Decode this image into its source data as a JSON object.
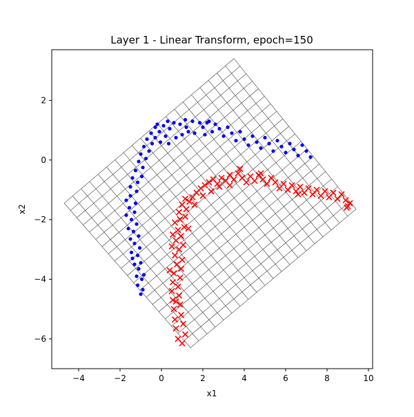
{
  "chart_data": {
    "type": "scatter",
    "title": "Layer 1 - Linear Transform, epoch=150",
    "xlabel": "x1",
    "ylabel": "x2",
    "xlim": [
      -5.3,
      10.2
    ],
    "ylim": [
      -7.0,
      3.7
    ],
    "xticks": [
      -4,
      -2,
      0,
      2,
      4,
      6,
      8,
      10
    ],
    "yticks": [
      -6,
      -4,
      -2,
      0,
      2
    ],
    "xtick_labels": [
      "−4",
      "−2",
      "0",
      "2",
      "4",
      "6",
      "8",
      "10"
    ],
    "ytick_labels": [
      "−6",
      "−4",
      "−2",
      "0",
      "2"
    ],
    "grid": {
      "corners": [
        [
          -4.7,
          -1.45
        ],
        [
          3.5,
          3.4
        ],
        [
          9.4,
          -1.65
        ],
        [
          1.4,
          -6.3
        ]
      ],
      "divisions": 20,
      "color": "#555555"
    },
    "series": [
      {
        "marker": "dot",
        "color": "#0000ff",
        "points": [
          [
            -1.0,
            -4.5
          ],
          [
            -0.9,
            -4.35
          ],
          [
            -1.15,
            -4.2
          ],
          [
            -0.95,
            -4.0
          ],
          [
            -1.2,
            -3.9
          ],
          [
            -0.85,
            -3.85
          ],
          [
            -1.1,
            -3.65
          ],
          [
            -1.3,
            -3.5
          ],
          [
            -1.0,
            -3.45
          ],
          [
            -1.4,
            -3.3
          ],
          [
            -1.15,
            -3.2
          ],
          [
            -1.45,
            -3.1
          ],
          [
            -1.05,
            -2.95
          ],
          [
            -1.3,
            -2.8
          ],
          [
            -1.5,
            -2.65
          ],
          [
            -1.1,
            -2.55
          ],
          [
            -1.35,
            -2.4
          ],
          [
            -1.6,
            -2.3
          ],
          [
            -1.2,
            -2.15
          ],
          [
            -1.45,
            -2.0
          ],
          [
            -1.7,
            -1.85
          ],
          [
            -1.3,
            -1.75
          ],
          [
            -1.55,
            -1.6
          ],
          [
            -1.25,
            -1.45
          ],
          [
            -1.7,
            -1.35
          ],
          [
            -1.5,
            -1.2
          ],
          [
            -1.2,
            -1.05
          ],
          [
            -1.5,
            -0.9
          ],
          [
            -1.15,
            -0.75
          ],
          [
            -1.4,
            -0.6
          ],
          [
            -0.95,
            -0.55
          ],
          [
            -1.25,
            -0.35
          ],
          [
            -0.9,
            -0.25
          ],
          [
            -1.1,
            -0.05
          ],
          [
            -0.75,
            0.05
          ],
          [
            -1.0,
            0.2
          ],
          [
            -0.6,
            0.3
          ],
          [
            -0.85,
            0.45
          ],
          [
            -0.45,
            0.55
          ],
          [
            -0.7,
            0.7
          ],
          [
            -0.3,
            0.75
          ],
          [
            -0.5,
            0.9
          ],
          [
            -0.1,
            0.95
          ],
          [
            -0.3,
            1.1
          ],
          [
            0.1,
            1.15
          ],
          [
            -0.05,
            0.6
          ],
          [
            0.2,
            0.8
          ],
          [
            0.4,
            1.05
          ],
          [
            0.35,
            0.55
          ],
          [
            0.6,
            1.25
          ],
          [
            0.7,
            0.75
          ],
          [
            0.9,
            1.2
          ],
          [
            1.0,
            0.85
          ],
          [
            1.15,
            1.35
          ],
          [
            1.3,
            0.95
          ],
          [
            1.5,
            1.3
          ],
          [
            1.6,
            0.9
          ],
          [
            1.85,
            1.25
          ],
          [
            2.0,
            1.1
          ],
          [
            2.1,
            0.85
          ],
          [
            2.3,
            1.3
          ],
          [
            2.45,
            0.95
          ],
          [
            2.6,
            1.2
          ],
          [
            2.8,
            1.05
          ],
          [
            3.0,
            0.8
          ],
          [
            3.2,
            1.1
          ],
          [
            3.4,
            0.9
          ],
          [
            3.6,
            0.65
          ],
          [
            3.8,
            0.95
          ],
          [
            4.0,
            0.7
          ],
          [
            4.2,
            0.5
          ],
          [
            4.4,
            0.8
          ],
          [
            4.6,
            0.6
          ],
          [
            4.8,
            0.4
          ],
          [
            5.0,
            0.75
          ],
          [
            5.2,
            0.55
          ],
          [
            5.4,
            0.3
          ],
          [
            5.6,
            0.65
          ],
          [
            5.8,
            0.45
          ],
          [
            6.0,
            0.25
          ],
          [
            6.2,
            0.55
          ],
          [
            6.4,
            0.35
          ],
          [
            6.6,
            0.15
          ],
          [
            6.8,
            0.5
          ],
          [
            7.0,
            0.3
          ],
          [
            7.2,
            0.1
          ],
          [
            -0.2,
            1.2
          ],
          [
            0.3,
            1.3
          ],
          [
            1.2,
            1.1
          ],
          [
            2.2,
            1.25
          ]
        ]
      },
      {
        "marker": "x",
        "color": "#ff0000",
        "points": [
          [
            1.0,
            -6.15
          ],
          [
            0.8,
            -6.0
          ],
          [
            1.15,
            -5.85
          ],
          [
            0.7,
            -5.65
          ],
          [
            1.05,
            -5.5
          ],
          [
            0.65,
            -5.35
          ],
          [
            0.95,
            -5.2
          ],
          [
            0.6,
            -5.0
          ],
          [
            0.9,
            -4.85
          ],
          [
            0.55,
            -4.7
          ],
          [
            0.85,
            -4.55
          ],
          [
            0.5,
            -4.4
          ],
          [
            0.8,
            -4.25
          ],
          [
            0.55,
            -4.1
          ],
          [
            0.9,
            -3.95
          ],
          [
            0.6,
            -3.8
          ],
          [
            0.95,
            -3.65
          ],
          [
            0.4,
            -3.7
          ],
          [
            0.75,
            -3.5
          ],
          [
            1.0,
            -3.35
          ],
          [
            0.65,
            -3.2
          ],
          [
            0.85,
            -3.0
          ],
          [
            1.05,
            -2.85
          ],
          [
            0.7,
            -2.7
          ],
          [
            0.95,
            -2.55
          ],
          [
            0.55,
            -2.5
          ],
          [
            0.8,
            -2.35
          ],
          [
            1.1,
            -2.25
          ],
          [
            0.65,
            -2.1
          ],
          [
            0.9,
            -2.0
          ],
          [
            1.15,
            -1.9
          ],
          [
            0.85,
            -1.75
          ],
          [
            1.2,
            -1.65
          ],
          [
            1.0,
            -1.5
          ],
          [
            1.35,
            -1.4
          ],
          [
            1.15,
            -1.3
          ],
          [
            1.5,
            -1.25
          ],
          [
            1.7,
            -1.1
          ],
          [
            1.9,
            -0.95
          ],
          [
            2.1,
            -0.85
          ],
          [
            2.3,
            -0.75
          ],
          [
            2.5,
            -0.65
          ],
          [
            2.7,
            -0.8
          ],
          [
            2.9,
            -0.6
          ],
          [
            3.1,
            -0.7
          ],
          [
            3.3,
            -0.5
          ],
          [
            3.5,
            -0.65
          ],
          [
            3.7,
            -0.45
          ],
          [
            3.9,
            -0.6
          ],
          [
            4.1,
            -0.75
          ],
          [
            4.3,
            -0.55
          ],
          [
            4.5,
            -0.7
          ],
          [
            4.7,
            -0.5
          ],
          [
            4.9,
            -0.65
          ],
          [
            5.1,
            -0.8
          ],
          [
            5.3,
            -0.6
          ],
          [
            5.5,
            -0.75
          ],
          [
            5.7,
            -0.95
          ],
          [
            5.9,
            -0.8
          ],
          [
            6.1,
            -1.0
          ],
          [
            6.3,
            -0.85
          ],
          [
            6.5,
            -1.05
          ],
          [
            6.7,
            -0.9
          ],
          [
            6.9,
            -1.1
          ],
          [
            7.1,
            -0.95
          ],
          [
            7.3,
            -1.15
          ],
          [
            7.5,
            -1.0
          ],
          [
            7.7,
            -1.2
          ],
          [
            7.9,
            -1.05
          ],
          [
            8.1,
            -1.25
          ],
          [
            8.3,
            -1.1
          ],
          [
            8.5,
            -1.3
          ],
          [
            8.7,
            -1.15
          ],
          [
            8.9,
            -1.35
          ],
          [
            9.0,
            -1.55
          ],
          [
            9.1,
            -1.45
          ],
          [
            8.95,
            -1.6
          ],
          [
            2.0,
            -1.2
          ],
          [
            2.4,
            -1.05
          ],
          [
            2.8,
            -0.9
          ],
          [
            3.3,
            -0.85
          ],
          [
            3.8,
            -0.3
          ],
          [
            4.8,
            -0.45
          ],
          [
            6.6,
            -1.15
          ],
          [
            1.6,
            -1.5
          ],
          [
            1.3,
            -2.3
          ],
          [
            0.5,
            -2.9
          ],
          [
            0.7,
            -4.75
          ]
        ]
      }
    ]
  }
}
